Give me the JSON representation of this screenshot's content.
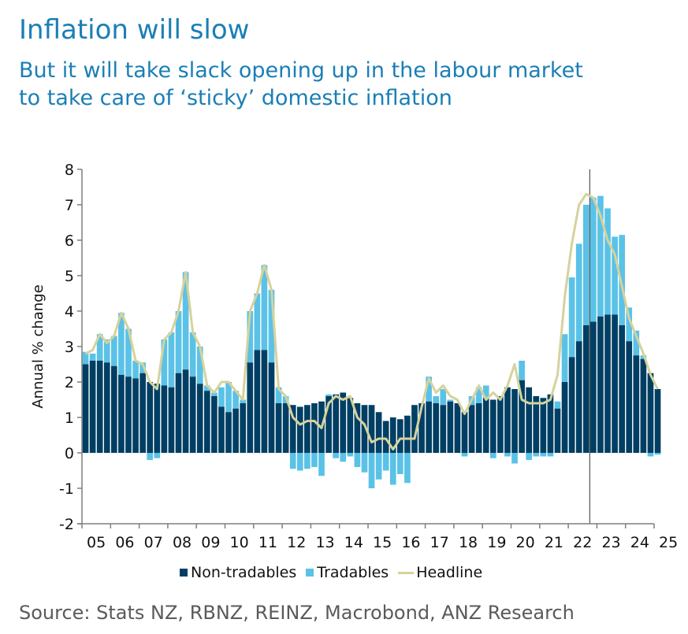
{
  "header": {
    "title": "Inflation will slow",
    "subtitle_line1": "But it will take slack opening up in the labour market",
    "subtitle_line2": "to take care of ‘sticky’ domestic inflation"
  },
  "legend": {
    "non_tradables": "Non-tradables",
    "tradables": "Tradables",
    "headline": "Headline"
  },
  "source": "Source: Stats NZ, RBNZ, REINZ, Macrobond, ANZ Research",
  "colors": {
    "non_tradables": "#003f63",
    "tradables": "#5bc2e7",
    "headline": "#d6d29c",
    "title": "#1a7fb5",
    "axis": "#7f7f7f",
    "marker_line": "#333333"
  },
  "chart_data": {
    "type": "bar",
    "stacked": true,
    "title": "Inflation will slow",
    "xlabel": "",
    "ylabel": "Annual % change",
    "ylim": [
      -2,
      8
    ],
    "yticks": [
      -2,
      -1,
      0,
      1,
      2,
      3,
      4,
      5,
      6,
      7,
      8
    ],
    "xtick_labels": [
      "05",
      "06",
      "07",
      "08",
      "09",
      "10",
      "11",
      "12",
      "13",
      "14",
      "15",
      "16",
      "17",
      "18",
      "19",
      "20",
      "21",
      "22",
      "23",
      "24",
      "25"
    ],
    "frequency": "quarterly",
    "start": "2005Q1",
    "vertical_marker": "2022Q4",
    "legend_position": "bottom",
    "grid": false,
    "series": [
      {
        "name": "Non-tradables",
        "type": "bar",
        "values": [
          2.5,
          2.6,
          2.6,
          2.55,
          2.45,
          2.2,
          2.15,
          2.1,
          2.25,
          2.0,
          1.95,
          1.9,
          1.85,
          2.25,
          2.35,
          2.15,
          1.95,
          1.75,
          1.6,
          1.3,
          1.15,
          1.25,
          1.4,
          2.55,
          2.9,
          2.9,
          2.55,
          1.4,
          1.4,
          1.35,
          1.3,
          1.35,
          1.4,
          1.45,
          1.6,
          1.65,
          1.7,
          1.55,
          1.4,
          1.35,
          1.35,
          1.15,
          0.9,
          1.0,
          0.95,
          1.05,
          1.35,
          1.4,
          1.45,
          1.4,
          1.35,
          1.45,
          1.4,
          1.15,
          1.35,
          1.4,
          1.55,
          1.5,
          1.6,
          1.85,
          1.8,
          2.05,
          1.85,
          1.6,
          1.55,
          1.65,
          1.25,
          2.0,
          2.7,
          3.15,
          3.6,
          3.7,
          3.85,
          3.9,
          3.9,
          3.6,
          3.15,
          2.75,
          2.65,
          2.25,
          1.8
        ]
      },
      {
        "name": "Tradables",
        "type": "bar",
        "values": [
          0.35,
          0.2,
          0.75,
          0.65,
          0.85,
          1.75,
          1.35,
          0.5,
          0.3,
          -0.2,
          -0.15,
          1.3,
          1.55,
          1.75,
          2.75,
          1.25,
          1.05,
          0.15,
          0.1,
          0.55,
          0.85,
          0.5,
          0.1,
          1.45,
          1.6,
          2.4,
          2.05,
          0.45,
          0.2,
          -0.45,
          -0.5,
          -0.45,
          -0.4,
          -0.65,
          0.05,
          -0.15,
          -0.25,
          -0.1,
          -0.4,
          -0.55,
          -1.0,
          -0.75,
          -0.5,
          -0.9,
          -0.6,
          -0.85,
          0.0,
          0.0,
          0.7,
          0.2,
          0.45,
          0.05,
          0.0,
          -0.1,
          0.25,
          0.45,
          0.35,
          -0.15,
          0.0,
          -0.1,
          -0.3,
          0.55,
          -0.2,
          -0.1,
          -0.1,
          -0.1,
          0.2,
          1.35,
          2.25,
          2.75,
          3.4,
          3.5,
          3.4,
          3.0,
          2.2,
          2.55,
          0.95,
          0.7,
          0.1,
          -0.1,
          -0.05
        ]
      },
      {
        "name": "Headline",
        "type": "line",
        "values": [
          2.8,
          2.9,
          3.35,
          3.1,
          3.3,
          3.95,
          3.5,
          2.6,
          2.5,
          2.0,
          1.8,
          3.2,
          3.4,
          4.0,
          5.1,
          3.4,
          3.0,
          1.9,
          1.7,
          2.0,
          2.0,
          1.75,
          1.5,
          4.0,
          4.5,
          5.3,
          4.6,
          1.8,
          1.6,
          1.0,
          0.8,
          0.9,
          0.9,
          0.7,
          1.4,
          1.6,
          1.5,
          1.6,
          1.0,
          0.8,
          0.3,
          0.4,
          0.4,
          0.1,
          0.4,
          0.4,
          0.4,
          1.3,
          2.1,
          1.7,
          1.9,
          1.6,
          1.5,
          1.1,
          1.5,
          1.9,
          1.5,
          1.7,
          1.5,
          1.9,
          2.5,
          1.5,
          1.4,
          1.4,
          1.4,
          1.5,
          2.2,
          4.4,
          5.9,
          7.0,
          7.3,
          7.2,
          6.7,
          6.0,
          5.6,
          4.7,
          3.8,
          3.3,
          2.8,
          2.2,
          1.8
        ]
      }
    ]
  }
}
